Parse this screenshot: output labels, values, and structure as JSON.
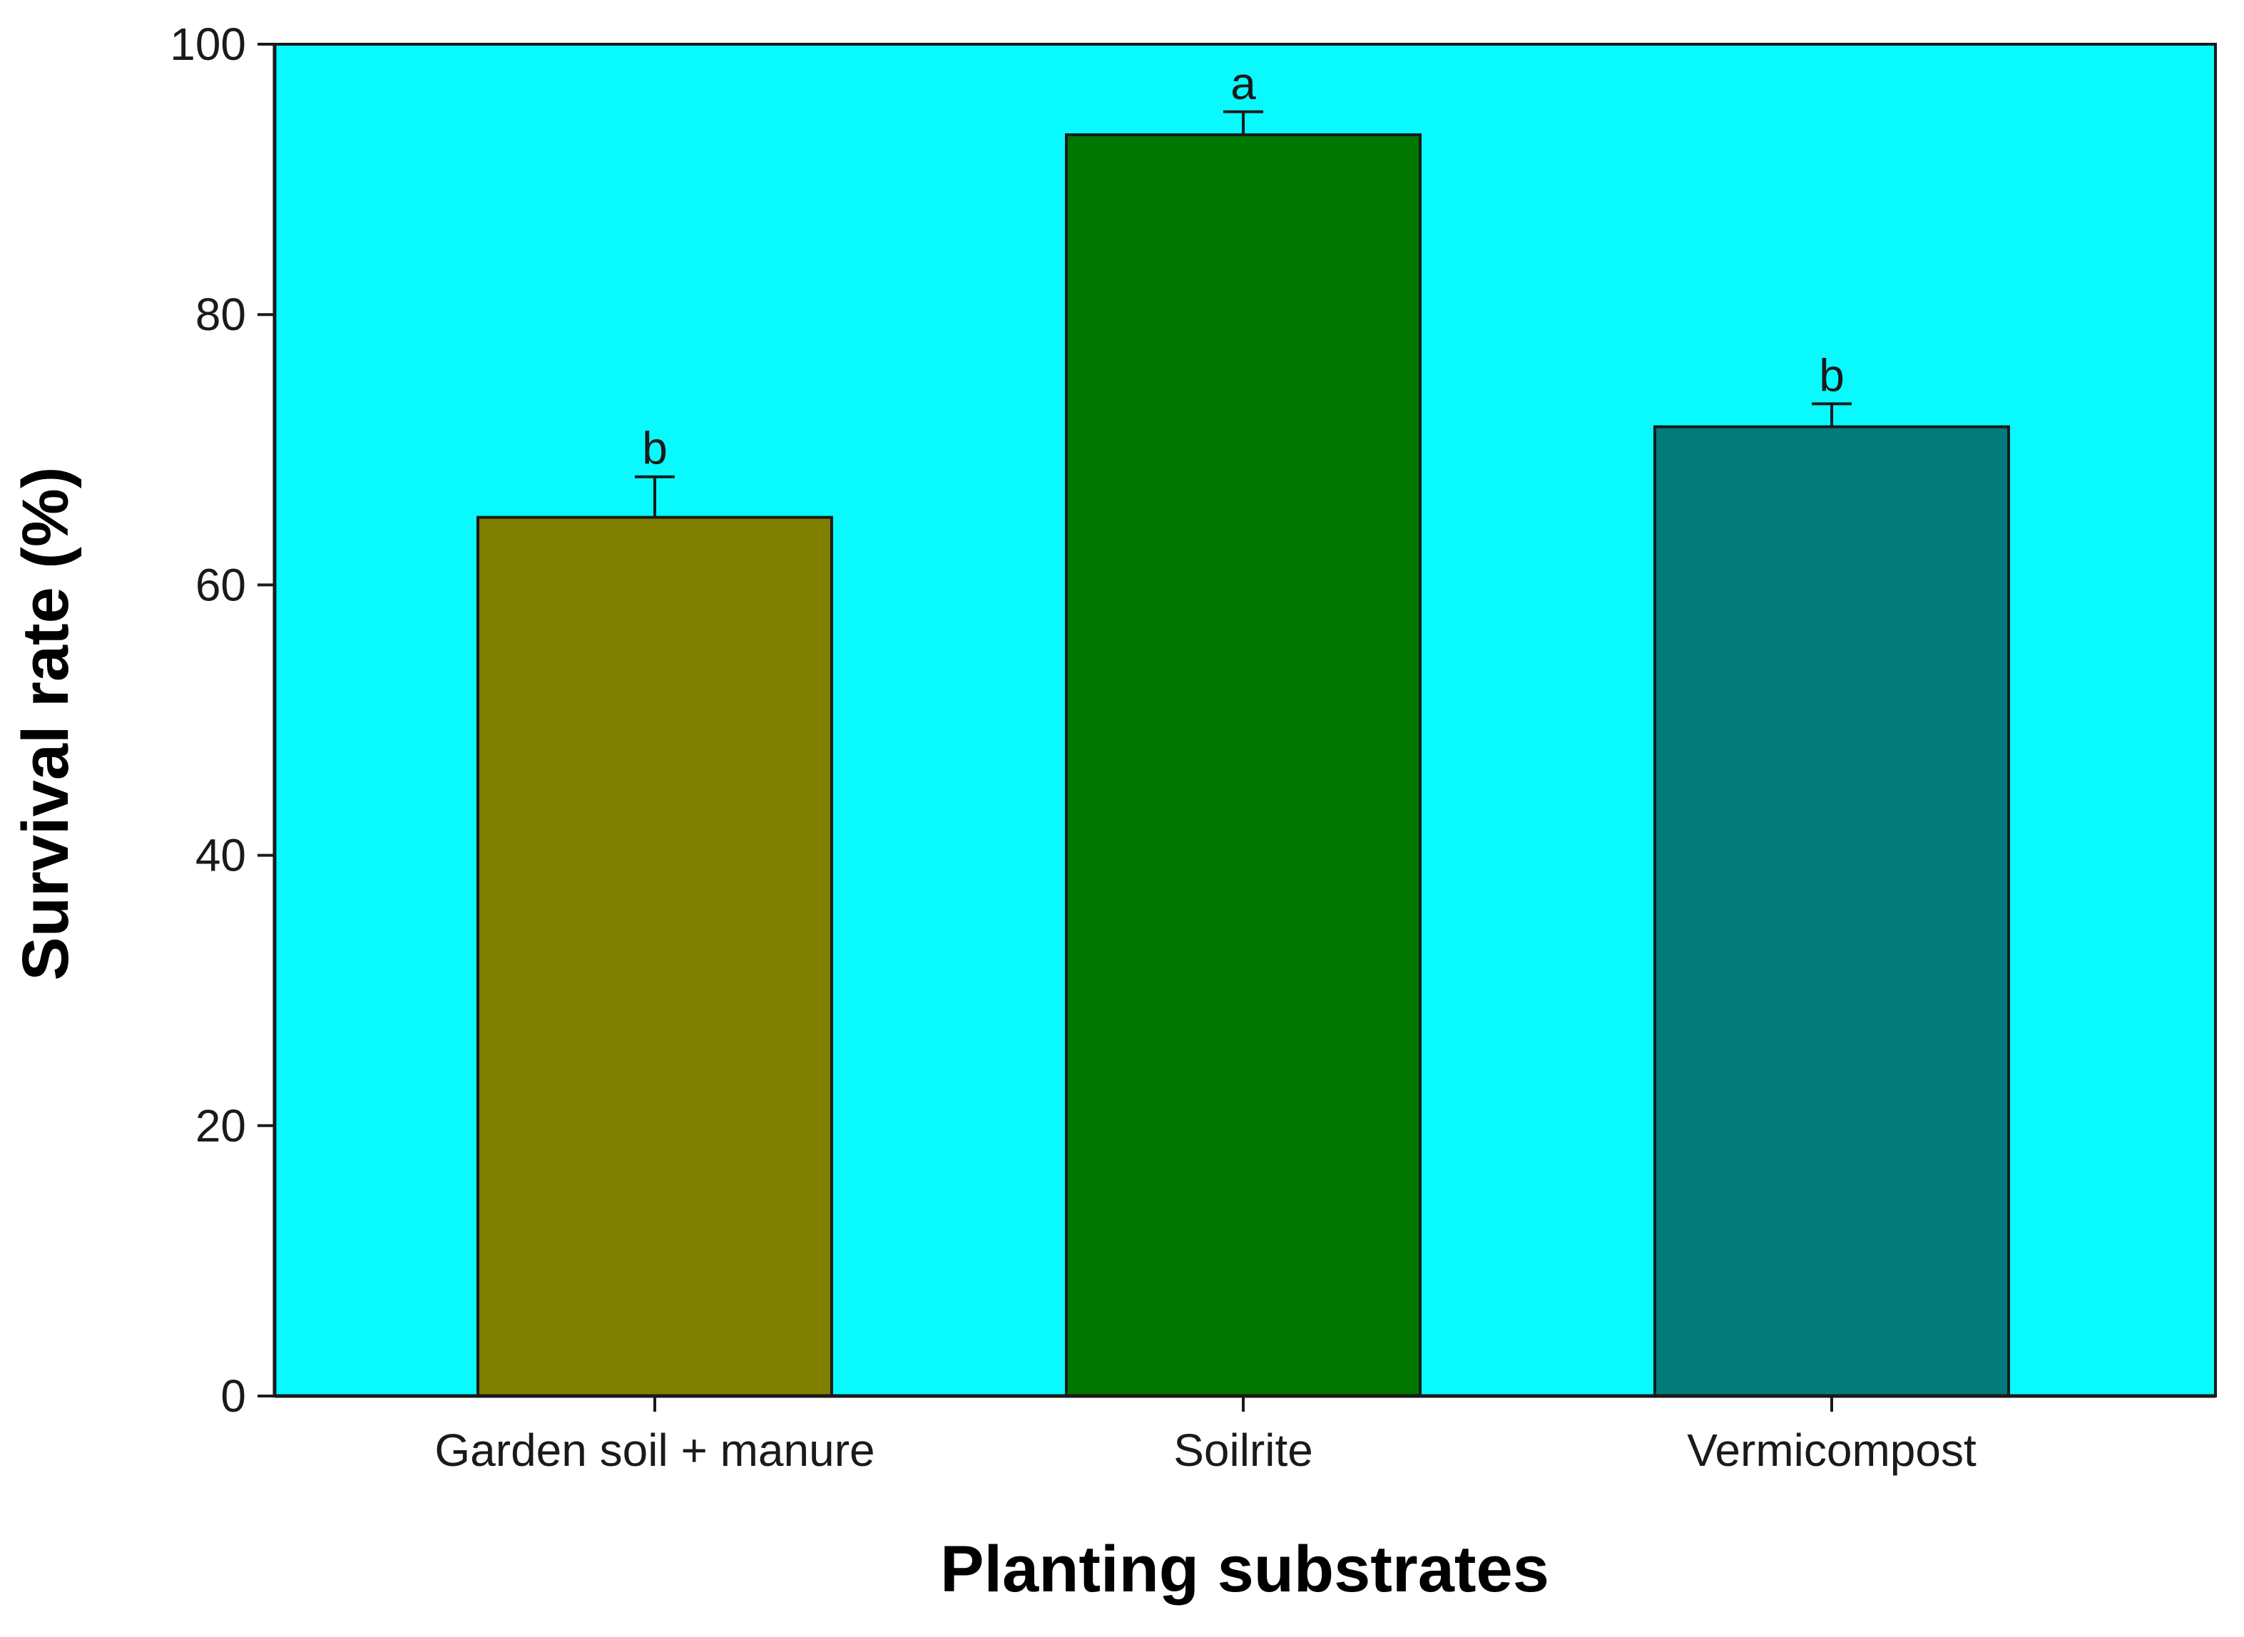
{
  "chart_data": {
    "type": "bar",
    "title": "",
    "xlabel": "Planting substrates",
    "ylabel": "Survival rate (%)",
    "categories": [
      "Garden soil + manure",
      "Soilrite",
      "Vermicompost"
    ],
    "values": [
      65.0,
      93.3,
      71.7
    ],
    "errors": [
      3.0,
      1.7,
      1.7
    ],
    "significance": [
      "b",
      "a",
      "b"
    ],
    "ylim": [
      0,
      100
    ],
    "yticks": [
      0,
      20,
      40,
      60,
      80,
      100
    ],
    "ytick_labels": [
      "0",
      "20",
      "40",
      "60",
      "80",
      "100"
    ],
    "grid": false,
    "colors": {
      "plot_background": "#08FAFE",
      "bars": [
        "#7F7F00",
        "#007700",
        "#047B7B"
      ],
      "bar_edge": "#1a1a1a",
      "axis": "#1a1a1a"
    }
  }
}
